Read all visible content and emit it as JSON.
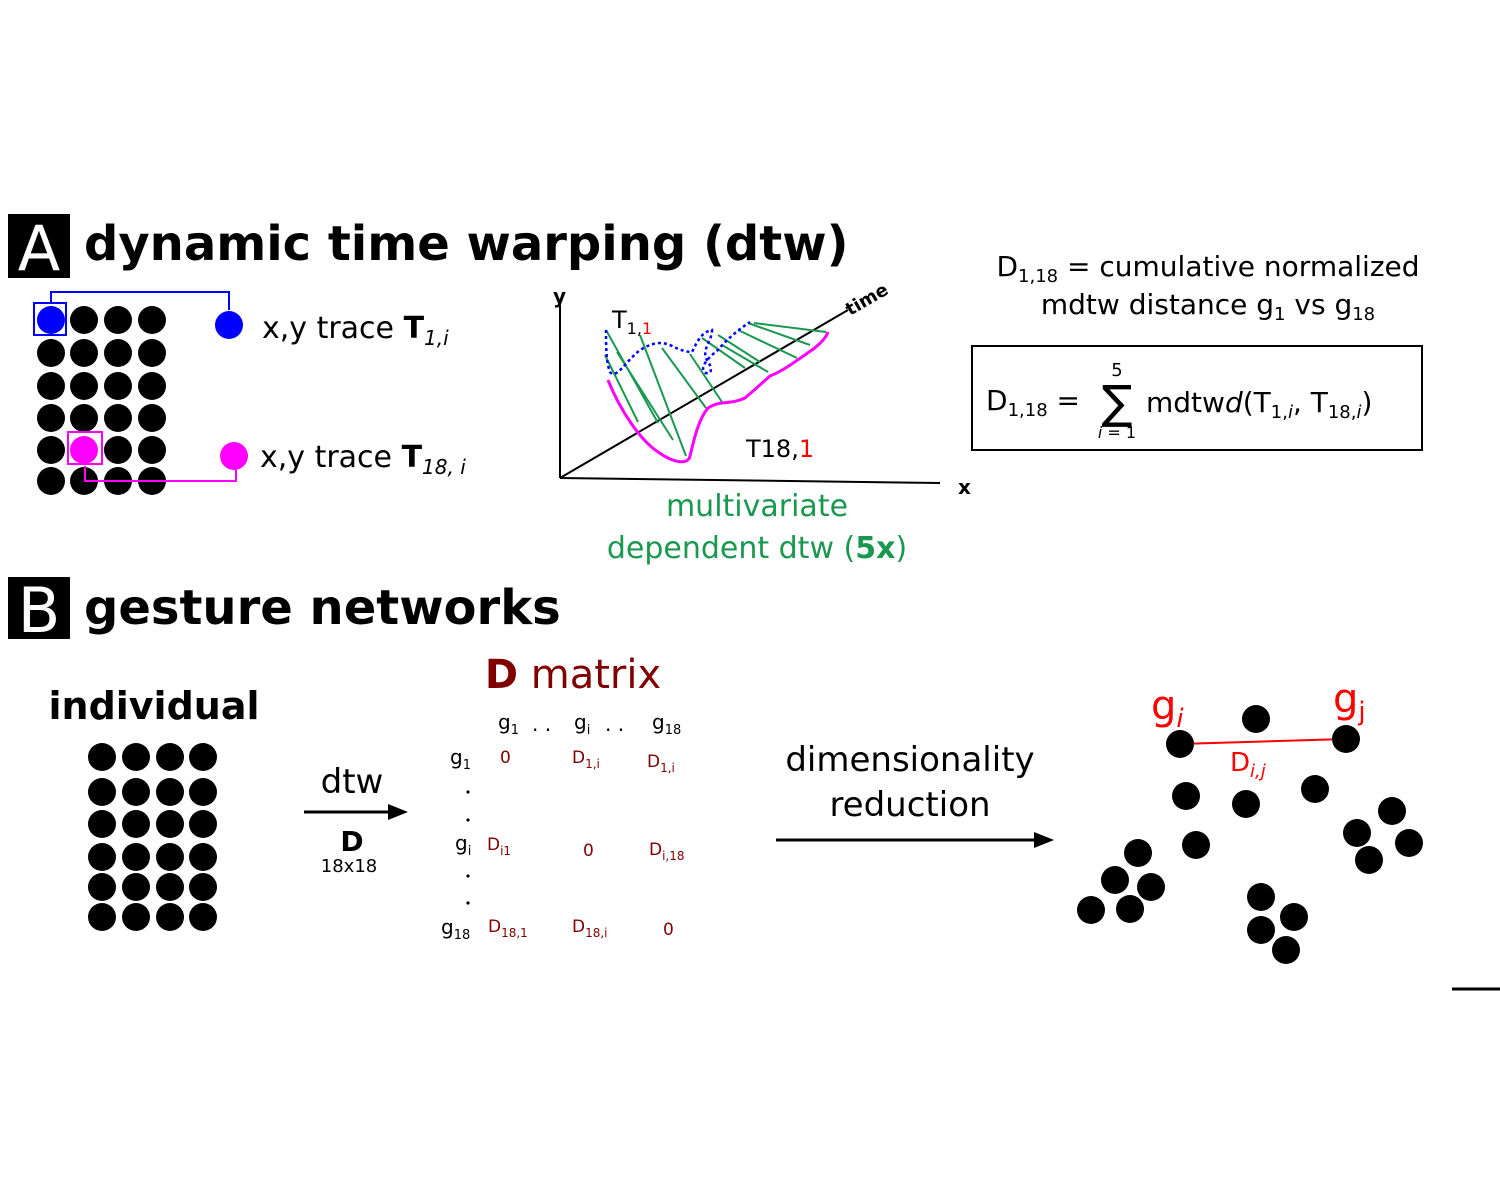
{
  "panel_a": {
    "letter": "A",
    "title": "dynamic time warping (dtw)",
    "trace1": {
      "prefix": "x,y trace ",
      "symbol": "T",
      "subscript": "1,i"
    },
    "trace18": {
      "prefix": "x,y trace ",
      "symbol": "T",
      "subscript": "18, i"
    },
    "plot": {
      "y_axis": "y",
      "x_axis": "x",
      "time_axis": "time",
      "label_t1": {
        "main": "T",
        "sub": "1,",
        "red": "1"
      },
      "label_t18": {
        "main": "T18,",
        "red": "1"
      },
      "caption_line1": "multivariate",
      "caption_line2_pre": "dependent dtw (",
      "caption_bold": "5x",
      "caption_line2_post": ")"
    },
    "definition": {
      "line1_pre": "D",
      "line1_sub": "1,18",
      "line1_post": " = cumulative normalized",
      "line2_pre": "mdtw distance g",
      "line2_sub1": "1",
      "line2_mid": " vs g",
      "line2_sub2": "18"
    },
    "formula": {
      "lhs": "D",
      "lhs_sub": "1,18",
      "equals": "=",
      "sum_top": "5",
      "sum_sign": "∑",
      "sum_bottom_var": "i",
      "sum_bottom_rest": " = 1",
      "func": "mdtw",
      "func_italic": "d",
      "args_open": "(T",
      "arg1_sub": "1,",
      "arg1_i": "i",
      "arg_sep": ", T",
      "arg2_sub": "18,",
      "arg2_i": "i",
      "args_close": ")"
    }
  },
  "panel_b": {
    "letter": "B",
    "title": "gesture networks",
    "individual_label": "individual",
    "arrow1": {
      "top": "dtw",
      "bold": "D",
      "dims": "18x18"
    },
    "matrix": {
      "title_bold": "D",
      "title_rest": " matrix",
      "col_headers": [
        {
          "main": "g",
          "sub": "1"
        },
        {
          "main": ". .",
          "sub": ""
        },
        {
          "main": "g",
          "sub": "i"
        },
        {
          "main": ". .",
          "sub": ""
        },
        {
          "main": "g",
          "sub": "18"
        }
      ],
      "row_headers": [
        {
          "main": "g",
          "sub": "1"
        },
        {
          "main": "g",
          "sub": "i"
        },
        {
          "main": "g",
          "sub": "18"
        }
      ],
      "rows": [
        [
          {
            "main": "0",
            "sub": ""
          },
          {
            "main": "D",
            "sub": "1,i"
          },
          {
            "main": "D",
            "sub": "1,i"
          }
        ],
        [
          {
            "main": "D",
            "sub": "i1"
          },
          {
            "main": "0",
            "sub": ""
          },
          {
            "main": "D",
            "sub": "i,18"
          }
        ],
        [
          {
            "main": "D",
            "sub": "18,1"
          },
          {
            "main": "D",
            "sub": "18,i"
          },
          {
            "main": "0",
            "sub": ""
          }
        ]
      ]
    },
    "arrow2": {
      "line1": "dimensionality",
      "line2": "reduction"
    },
    "network": {
      "gi_main": "g",
      "gi_sub": "i",
      "gj_main": "g",
      "gj_sub": "j",
      "edge_main": "D",
      "edge_sub": "i,j"
    }
  },
  "colors": {
    "black": "#000000",
    "blue": "#0000ff",
    "magenta": "#ff00ff",
    "green": "#1a9850",
    "dark_red": "#800000",
    "red": "#ff0000"
  }
}
